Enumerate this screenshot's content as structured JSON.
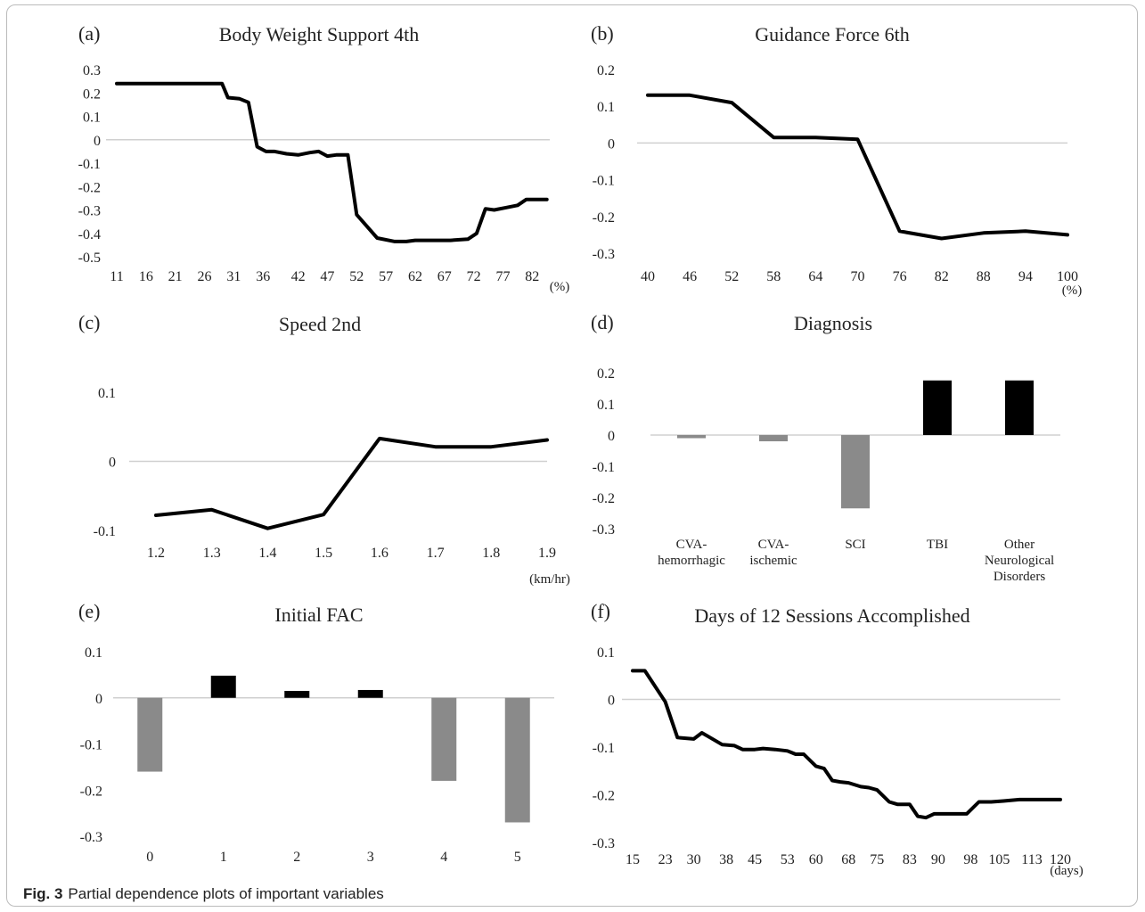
{
  "caption": {
    "label": "Fig. 3",
    "text": "Partial dependence plots of important variables"
  },
  "chart_data": [
    {
      "id": "a",
      "panel_label": "(a)",
      "type": "line",
      "title": "Body Weight Support 4th",
      "unit": "(%)",
      "ylim": [
        -0.5,
        0.3
      ],
      "yticks": [
        0.3,
        0.2,
        0.1,
        0,
        -0.1,
        -0.2,
        -0.3,
        -0.4,
        -0.5
      ],
      "xlim": [
        11,
        85
      ],
      "xticks": [
        11,
        16,
        21,
        26,
        31,
        36,
        42,
        47,
        52,
        57,
        62,
        67,
        72,
        77,
        82
      ],
      "zero_line": true,
      "series": [
        {
          "color": "#000000",
          "x": [
            11,
            16,
            21,
            26,
            29,
            30,
            32,
            33.5,
            35,
            36.5,
            38,
            40,
            42,
            44,
            45.5,
            47,
            48.5,
            50.5,
            52,
            55.5,
            58.5,
            60.5,
            62,
            64,
            66,
            68,
            71,
            72.5,
            74,
            75.5,
            77.5,
            79.5,
            81,
            84.5
          ],
          "y": [
            0.24,
            0.24,
            0.24,
            0.24,
            0.24,
            0.18,
            0.175,
            0.16,
            -0.03,
            -0.05,
            -0.05,
            -0.06,
            -0.065,
            -0.055,
            -0.05,
            -0.07,
            -0.065,
            -0.065,
            -0.32,
            -0.42,
            -0.435,
            -0.435,
            -0.43,
            -0.43,
            -0.43,
            -0.43,
            -0.425,
            -0.4,
            -0.295,
            -0.3,
            -0.29,
            -0.28,
            -0.255,
            -0.255
          ]
        }
      ]
    },
    {
      "id": "b",
      "panel_label": "(b)",
      "type": "line",
      "title": "Guidance Force 6th",
      "unit": "(%)",
      "ylim": [
        -0.3,
        0.2
      ],
      "yticks": [
        0.2,
        0.1,
        0,
        -0.1,
        -0.2,
        -0.3
      ],
      "xlim": [
        40,
        100
      ],
      "xticks": [
        40,
        46,
        52,
        58,
        64,
        70,
        76,
        82,
        88,
        94,
        100
      ],
      "zero_line": true,
      "series": [
        {
          "color": "#000000",
          "x": [
            40,
            46,
            52,
            58,
            64,
            70,
            76,
            82,
            88,
            94,
            100
          ],
          "y": [
            0.13,
            0.13,
            0.11,
            0.015,
            0.015,
            0.01,
            -0.24,
            -0.26,
            -0.245,
            -0.24,
            -0.25
          ]
        }
      ]
    },
    {
      "id": "c",
      "panel_label": "(c)",
      "type": "line",
      "title": "Speed 2nd",
      "unit": "(km/hr)",
      "ylim": [
        -0.1,
        0.1
      ],
      "yticks": [
        0.1,
        0,
        -0.1
      ],
      "xlim": [
        1.2,
        1.9
      ],
      "xticks": [
        1.2,
        1.3,
        1.4,
        1.5,
        1.6,
        1.7,
        1.8,
        1.9
      ],
      "zero_line": true,
      "series": [
        {
          "color": "#000000",
          "x": [
            1.2,
            1.3,
            1.4,
            1.5,
            1.6,
            1.7,
            1.8,
            1.9
          ],
          "y": [
            -0.078,
            -0.07,
            -0.097,
            -0.077,
            0.033,
            0.021,
            0.021,
            0.031
          ]
        }
      ]
    },
    {
      "id": "d",
      "panel_label": "(d)",
      "type": "bar",
      "title": "Diagnosis",
      "ylim": [
        -0.3,
        0.2
      ],
      "yticks": [
        0.2,
        0.1,
        0,
        -0.1,
        -0.2,
        -0.3
      ],
      "zero_line": true,
      "categories": [
        "CVA-\nhemorrhagic",
        "CVA-\nischemic",
        "SCI",
        "TBI",
        "Other\nNeurological\nDisorders"
      ],
      "values": [
        -0.01,
        -0.02,
        -0.235,
        0.175,
        0.175
      ],
      "colors": [
        "#8a8a8a",
        "#8a8a8a",
        "#8a8a8a",
        "#000000",
        "#000000"
      ]
    },
    {
      "id": "e",
      "panel_label": "(e)",
      "type": "bar",
      "title": "Initial FAC",
      "ylim": [
        -0.3,
        0.1
      ],
      "yticks": [
        0.1,
        0,
        -0.1,
        -0.2,
        -0.3
      ],
      "zero_line": true,
      "categories": [
        "0",
        "1",
        "2",
        "3",
        "4",
        "5"
      ],
      "values": [
        -0.16,
        0.048,
        0.015,
        0.017,
        -0.18,
        -0.27
      ],
      "colors": [
        "#8a8a8a",
        "#000000",
        "#000000",
        "#000000",
        "#8a8a8a",
        "#8a8a8a"
      ]
    },
    {
      "id": "f",
      "panel_label": "(f)",
      "type": "line",
      "title": "Days of 12 Sessions Accomplished",
      "unit": "(days)",
      "ylim": [
        -0.3,
        0.1
      ],
      "yticks": [
        0.1,
        0,
        -0.1,
        -0.2,
        -0.3
      ],
      "xlim": [
        15,
        120
      ],
      "xticks": [
        15,
        23,
        30,
        38,
        45,
        53,
        60,
        68,
        75,
        83,
        90,
        98,
        105,
        113,
        120
      ],
      "zero_line": true,
      "series": [
        {
          "color": "#000000",
          "x": [
            15,
            18,
            23,
            26,
            30,
            32,
            34,
            37,
            40,
            42,
            45,
            47,
            50,
            53,
            55,
            57,
            60,
            62,
            64,
            66,
            68,
            71,
            73,
            75,
            78,
            80,
            83,
            85,
            87,
            89,
            91,
            94,
            97,
            100,
            103,
            106,
            110,
            113,
            117,
            120
          ],
          "y": [
            0.06,
            0.06,
            -0.005,
            -0.08,
            -0.083,
            -0.07,
            -0.08,
            -0.095,
            -0.097,
            -0.105,
            -0.105,
            -0.103,
            -0.105,
            -0.108,
            -0.115,
            -0.115,
            -0.14,
            -0.145,
            -0.17,
            -0.173,
            -0.175,
            -0.183,
            -0.185,
            -0.19,
            -0.215,
            -0.22,
            -0.22,
            -0.245,
            -0.248,
            -0.24,
            -0.24,
            -0.24,
            -0.24,
            -0.215,
            -0.215,
            -0.213,
            -0.21,
            -0.21,
            -0.21,
            -0.21
          ]
        }
      ]
    }
  ]
}
